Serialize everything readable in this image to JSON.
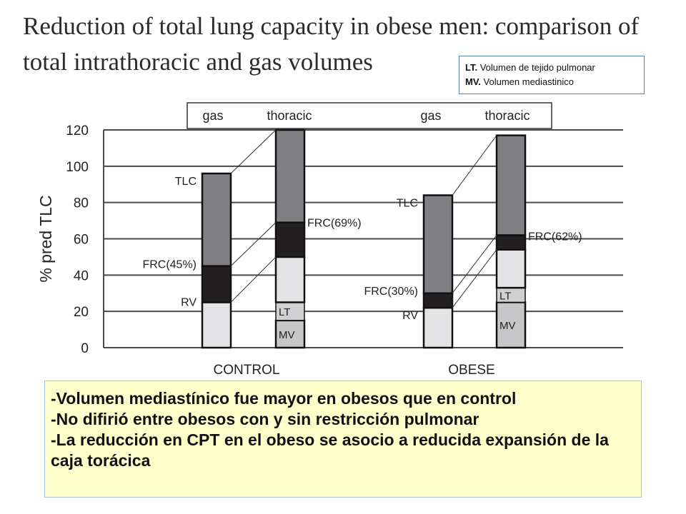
{
  "title": "Reduction of total lung capacity in obese men: comparison of total intrathoracic and gas volumes",
  "legend_box": {
    "items": [
      {
        "abbr": "LT.",
        "text": " Volumen de tejido pulmonar"
      },
      {
        "abbr": "MV.",
        "text": " Volumen mediastinico"
      }
    ]
  },
  "notes": [
    "-Volumen mediastínico fue mayor en obesos que en control",
    "-No difirió entre obesos con y sin restricción pulmonar",
    "-La reducción en CPT en el obeso se asocio a reducida expansión de la caja torácica"
  ],
  "chart_data": {
    "type": "bar",
    "stacked": true,
    "ylabel": "% pred TLC",
    "ylim": [
      0,
      120
    ],
    "yticks": [
      0,
      20,
      40,
      60,
      80,
      100,
      120
    ],
    "grid": true,
    "header_labels": [
      "gas",
      "thoracic",
      "gas",
      "thoracic"
    ],
    "groups": [
      {
        "name": "CONTROL",
        "gas": {
          "RV": 25,
          "FRC": 45,
          "TLC": 96
        },
        "thoracic": {
          "MV": 15,
          "LT": 25,
          "RV": 50,
          "FRC": 69,
          "TLC": 120
        },
        "labels": {
          "TLC": "TLC",
          "FRC_gas": "FRC(45%)",
          "RV": "RV",
          "FRC_thoracic": "FRC(69%)",
          "LT": "LT",
          "MV": "MV"
        }
      },
      {
        "name": "OBESE",
        "gas": {
          "RV": 22,
          "FRC": 30,
          "TLC": 84
        },
        "thoracic": {
          "MV": 25,
          "LT": 33,
          "RV": 54,
          "FRC": 62,
          "TLC": 117
        },
        "labels": {
          "TLC": "TLC",
          "FRC_gas": "FRC(30%)",
          "RV": "RV",
          "FRC_thoracic": "FRC(62%)",
          "LT": "LT",
          "MV": "MV"
        }
      }
    ],
    "colors": {
      "tlc": "#808084",
      "frc": "#231f20",
      "rv": "#e4e4e6",
      "lt": "#d0d0d2",
      "mv": "#c7c7c9",
      "grid": "#4a4a4a"
    }
  }
}
